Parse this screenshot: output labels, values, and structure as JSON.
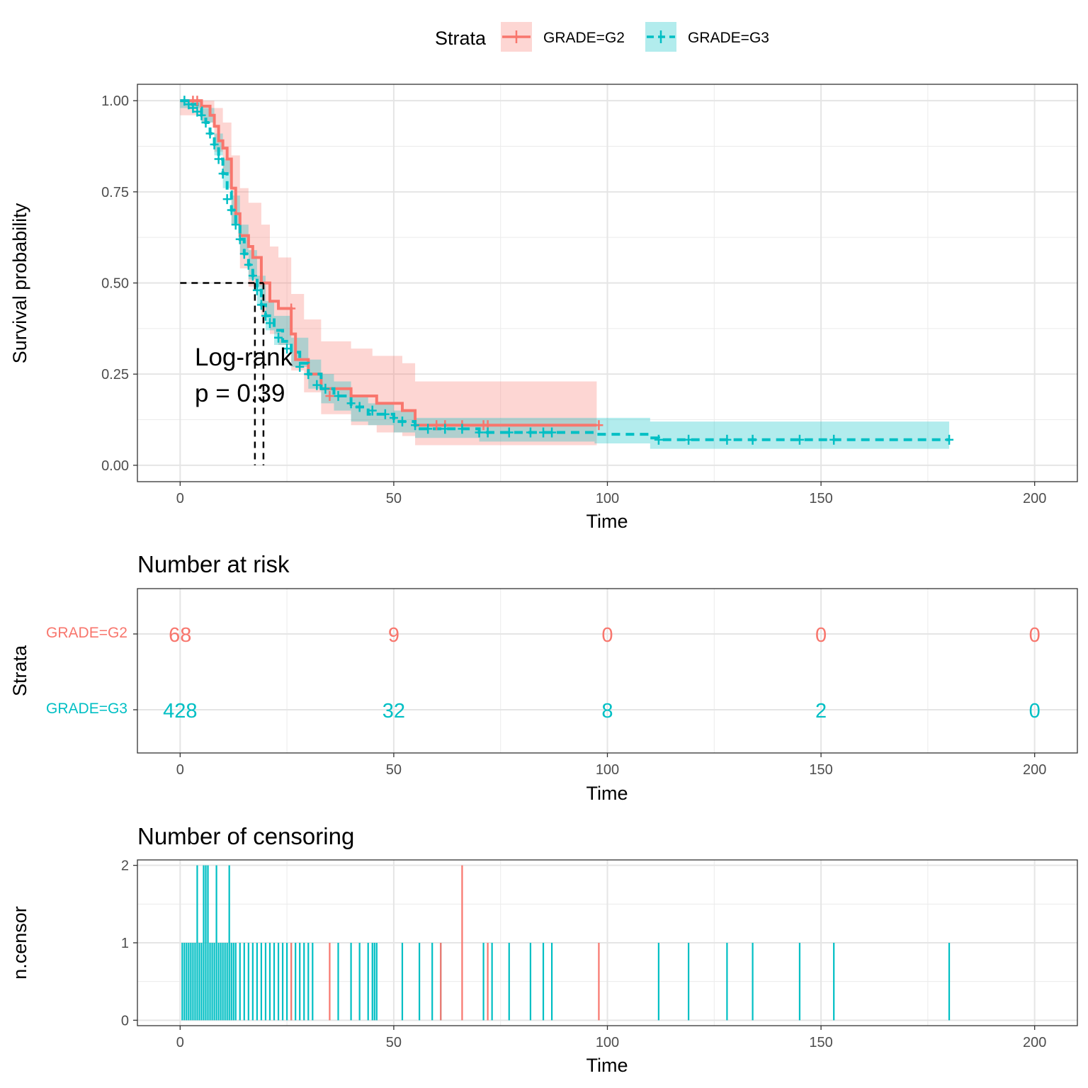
{
  "colors": {
    "g2": "#F8766D",
    "g3": "#00BFC4",
    "g2_band": "#F8766D",
    "g3_band": "#00BFC4"
  },
  "legend": {
    "title": "Strata",
    "items": [
      {
        "label": "GRADE=G2",
        "color": "#F8766D"
      },
      {
        "label": "GRADE=G3",
        "color": "#00BFC4"
      }
    ]
  },
  "annotation": {
    "line1": "Log-rank",
    "line2": "p = 0.39"
  },
  "risk_table": {
    "title": "Number at risk",
    "ylabel": "Strata",
    "xlabel": "Time",
    "strata": [
      {
        "label": "GRADE=G2",
        "color": "#F8766D",
        "values": [
          "68",
          "9",
          "0",
          "0",
          "0"
        ]
      },
      {
        "label": "GRADE=G3",
        "color": "#00BFC4",
        "values": [
          "428",
          "32",
          "8",
          "2",
          "0"
        ]
      }
    ],
    "times": [
      0,
      50,
      100,
      150,
      200
    ],
    "xticks": [
      "0",
      "50",
      "100",
      "150",
      "200"
    ]
  },
  "censor_plot": {
    "title": "Number of censoring",
    "ylabel": "n.censor",
    "xlabel": "Time",
    "yticks": [
      "0",
      "1",
      "2"
    ],
    "xticks": [
      "0",
      "50",
      "100",
      "150",
      "200"
    ]
  },
  "chart_data": [
    {
      "type": "line",
      "subtype": "kaplan-meier",
      "title": "",
      "xlabel": "Time",
      "ylabel": "Survival probability",
      "xlim": [
        -10,
        210
      ],
      "ylim": [
        -0.045,
        1.045
      ],
      "xticks": [
        "0",
        "50",
        "100",
        "150",
        "200"
      ],
      "yticks": [
        "0.00",
        "0.25",
        "0.50",
        "0.75",
        "1.00"
      ],
      "median_lines": {
        "y": 0.5,
        "x": [
          17.5,
          19.5
        ]
      },
      "series": [
        {
          "name": "GRADE=G2",
          "color": "#F8766D",
          "dash": "solid",
          "steps": [
            [
              0,
              1.0
            ],
            [
              5,
              0.985
            ],
            [
              7,
              0.96
            ],
            [
              8,
              0.93
            ],
            [
              9,
              0.89
            ],
            [
              10,
              0.87
            ],
            [
              11,
              0.84
            ],
            [
              12,
              0.76
            ],
            [
              13,
              0.69
            ],
            [
              14,
              0.63
            ],
            [
              16,
              0.6
            ],
            [
              17,
              0.57
            ],
            [
              19,
              0.5
            ],
            [
              21,
              0.45
            ],
            [
              23,
              0.43
            ],
            [
              26,
              0.36
            ],
            [
              27,
              0.29
            ],
            [
              30,
              0.25
            ],
            [
              33,
              0.21
            ],
            [
              40,
              0.19
            ],
            [
              46,
              0.17
            ],
            [
              52,
              0.15
            ],
            [
              55,
              0.11
            ],
            [
              97.5,
              0.11
            ]
          ],
          "band_upper": [
            [
              0,
              1.0
            ],
            [
              5,
              1.0
            ],
            [
              8,
              0.98
            ],
            [
              10,
              0.94
            ],
            [
              12,
              0.85
            ],
            [
              14,
              0.76
            ],
            [
              16,
              0.72
            ],
            [
              19,
              0.66
            ],
            [
              21,
              0.6
            ],
            [
              23,
              0.57
            ],
            [
              26,
              0.47
            ],
            [
              29,
              0.4
            ],
            [
              33,
              0.34
            ],
            [
              40,
              0.32
            ],
            [
              45,
              0.3
            ],
            [
              52,
              0.28
            ],
            [
              55,
              0.23
            ],
            [
              97.5,
              0.23
            ]
          ],
          "band_lower": [
            [
              0,
              0.96
            ],
            [
              5,
              0.94
            ],
            [
              8,
              0.86
            ],
            [
              10,
              0.8
            ],
            [
              12,
              0.66
            ],
            [
              14,
              0.54
            ],
            [
              16,
              0.49
            ],
            [
              19,
              0.41
            ],
            [
              21,
              0.36
            ],
            [
              23,
              0.33
            ],
            [
              26,
              0.26
            ],
            [
              29,
              0.2
            ],
            [
              33,
              0.14
            ],
            [
              40,
              0.11
            ],
            [
              46,
              0.09
            ],
            [
              52,
              0.08
            ],
            [
              55,
              0.055
            ],
            [
              97.5,
              0.055
            ]
          ],
          "censor_times": [
            3,
            4,
            26,
            35,
            60,
            62,
            66,
            71,
            72,
            98
          ],
          "censor_surv": [
            1.0,
            1.0,
            0.43,
            0.19,
            0.11,
            0.11,
            0.11,
            0.11,
            0.11,
            0.11
          ]
        },
        {
          "name": "GRADE=G3",
          "color": "#00BFC4",
          "dash": "dashed",
          "steps": [
            [
              0,
              1.0
            ],
            [
              2,
              0.99
            ],
            [
              4,
              0.98
            ],
            [
              5,
              0.96
            ],
            [
              6,
              0.94
            ],
            [
              7,
              0.91
            ],
            [
              8,
              0.88
            ],
            [
              9,
              0.84
            ],
            [
              10,
              0.8
            ],
            [
              11,
              0.75
            ],
            [
              12,
              0.7
            ],
            [
              13,
              0.66
            ],
            [
              14,
              0.62
            ],
            [
              15,
              0.58
            ],
            [
              16,
              0.55
            ],
            [
              17,
              0.52
            ],
            [
              18,
              0.48
            ],
            [
              19,
              0.44
            ],
            [
              20,
              0.41
            ],
            [
              22,
              0.37
            ],
            [
              24,
              0.34
            ],
            [
              26,
              0.31
            ],
            [
              28,
              0.28
            ],
            [
              30,
              0.25
            ],
            [
              33,
              0.21
            ],
            [
              36,
              0.19
            ],
            [
              40,
              0.16
            ],
            [
              44,
              0.14
            ],
            [
              50,
              0.12
            ],
            [
              55,
              0.1
            ],
            [
              70,
              0.09
            ],
            [
              85,
              0.09
            ],
            [
              97,
              0.085
            ],
            [
              110,
              0.075
            ],
            [
              112,
              0.07
            ],
            [
              180,
              0.07
            ]
          ],
          "band_upper": [
            [
              0,
              1.0
            ],
            [
              5,
              0.98
            ],
            [
              8,
              0.91
            ],
            [
              10,
              0.84
            ],
            [
              12,
              0.74
            ],
            [
              14,
              0.66
            ],
            [
              16,
              0.59
            ],
            [
              18,
              0.52
            ],
            [
              20,
              0.45
            ],
            [
              22,
              0.41
            ],
            [
              26,
              0.35
            ],
            [
              30,
              0.29
            ],
            [
              33,
              0.25
            ],
            [
              36,
              0.23
            ],
            [
              40,
              0.19
            ],
            [
              44,
              0.17
            ],
            [
              50,
              0.15
            ],
            [
              55,
              0.13
            ],
            [
              97,
              0.13
            ],
            [
              110,
              0.12
            ],
            [
              180,
              0.12
            ]
          ],
          "band_lower": [
            [
              0,
              0.98
            ],
            [
              5,
              0.94
            ],
            [
              8,
              0.85
            ],
            [
              10,
              0.76
            ],
            [
              12,
              0.66
            ],
            [
              14,
              0.58
            ],
            [
              16,
              0.51
            ],
            [
              18,
              0.44
            ],
            [
              20,
              0.37
            ],
            [
              22,
              0.33
            ],
            [
              26,
              0.27
            ],
            [
              30,
              0.21
            ],
            [
              33,
              0.17
            ],
            [
              36,
              0.15
            ],
            [
              40,
              0.12
            ],
            [
              44,
              0.11
            ],
            [
              50,
              0.09
            ],
            [
              55,
              0.075
            ],
            [
              70,
              0.065
            ],
            [
              97,
              0.06
            ],
            [
              110,
              0.045
            ],
            [
              180,
              0.045
            ]
          ],
          "censor_times": [
            1,
            2,
            3,
            4,
            5,
            6,
            7,
            8,
            9,
            10,
            11,
            12,
            13,
            14,
            15,
            16,
            17,
            18,
            19,
            20,
            21,
            23,
            25,
            28,
            30,
            32,
            34,
            37,
            40,
            42,
            45,
            48,
            50,
            52,
            55,
            58,
            62,
            66,
            70,
            72,
            77,
            82,
            85,
            87,
            112,
            119,
            128,
            134,
            145,
            153,
            180
          ],
          "censor_surv": [
            1.0,
            0.99,
            0.98,
            0.97,
            0.96,
            0.94,
            0.91,
            0.88,
            0.84,
            0.8,
            0.73,
            0.7,
            0.66,
            0.62,
            0.58,
            0.55,
            0.52,
            0.48,
            0.44,
            0.41,
            0.39,
            0.35,
            0.32,
            0.27,
            0.25,
            0.22,
            0.21,
            0.19,
            0.17,
            0.16,
            0.15,
            0.14,
            0.13,
            0.12,
            0.11,
            0.1,
            0.1,
            0.1,
            0.09,
            0.09,
            0.09,
            0.09,
            0.09,
            0.09,
            0.07,
            0.07,
            0.07,
            0.07,
            0.07,
            0.07,
            0.07
          ]
        }
      ]
    },
    {
      "type": "bar",
      "subtype": "censor-counts",
      "title": "Number of censoring",
      "xlabel": "Time",
      "ylabel": "n.censor",
      "ylim": [
        -0.07,
        2.07
      ],
      "series": [
        {
          "name": "GRADE=G2",
          "color": "#F8766D",
          "times": [
            26,
            35,
            61,
            66,
            72,
            98
          ],
          "counts": [
            1,
            1,
            1,
            2,
            1,
            1
          ]
        },
        {
          "name": "GRADE=G3",
          "color": "#00BFC4",
          "times": [
            0.5,
            1,
            1.5,
            2,
            2.5,
            3,
            3.5,
            4,
            4.5,
            5,
            5.5,
            6,
            6.5,
            7,
            7.5,
            8,
            8.5,
            9,
            9.5,
            10,
            10.5,
            11,
            11.5,
            12,
            12.5,
            13,
            14,
            15,
            16,
            17,
            18,
            19,
            20,
            21,
            22,
            23,
            24,
            25,
            26,
            27,
            28,
            29,
            30,
            31,
            37,
            40,
            42,
            44,
            45,
            45.5,
            46,
            52,
            56,
            59,
            61,
            71,
            73,
            77,
            82,
            85,
            87,
            112,
            119,
            128,
            134,
            145,
            153,
            180
          ],
          "counts": [
            1,
            1,
            1,
            1,
            1,
            1,
            1,
            2,
            1,
            1,
            2,
            2,
            2,
            1,
            1,
            1,
            2,
            1,
            1,
            1,
            1,
            1,
            2,
            1,
            1,
            1,
            1,
            1,
            1,
            1,
            1,
            1,
            1,
            1,
            1,
            1,
            1,
            1,
            1,
            1,
            1,
            1,
            1,
            1,
            1,
            1,
            1,
            1,
            1,
            1,
            1,
            1,
            1,
            1,
            1,
            1,
            1,
            1,
            1,
            1,
            1,
            1,
            1,
            1,
            1,
            1,
            1,
            1
          ]
        }
      ]
    }
  ]
}
